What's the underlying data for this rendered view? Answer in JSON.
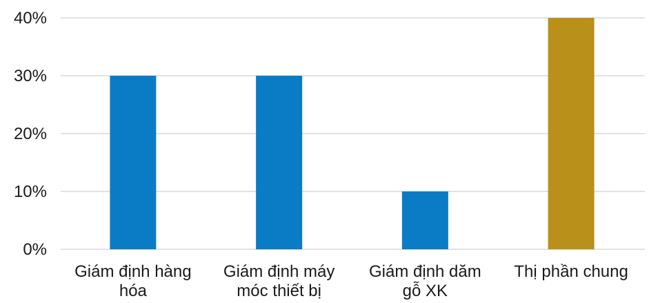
{
  "chart_data": {
    "type": "bar",
    "categories": [
      [
        "Giám định hàng",
        "hóa"
      ],
      [
        "Giám định máy",
        "móc thiết bị"
      ],
      [
        "Giám định dăm",
        "gỗ XK"
      ],
      [
        "Thị phần chung"
      ]
    ],
    "values": [
      30,
      30,
      10,
      40
    ],
    "bar_colors": [
      "#0a7cc6",
      "#0a7cc6",
      "#0a7cc6",
      "#b8901a"
    ],
    "yticks": [
      "0%",
      "10%",
      "20%",
      "30%",
      "40%"
    ],
    "ylim": [
      0,
      40
    ],
    "unit": "%",
    "title": "",
    "xlabel": "",
    "ylabel": "",
    "grid": true,
    "legend": "none"
  }
}
